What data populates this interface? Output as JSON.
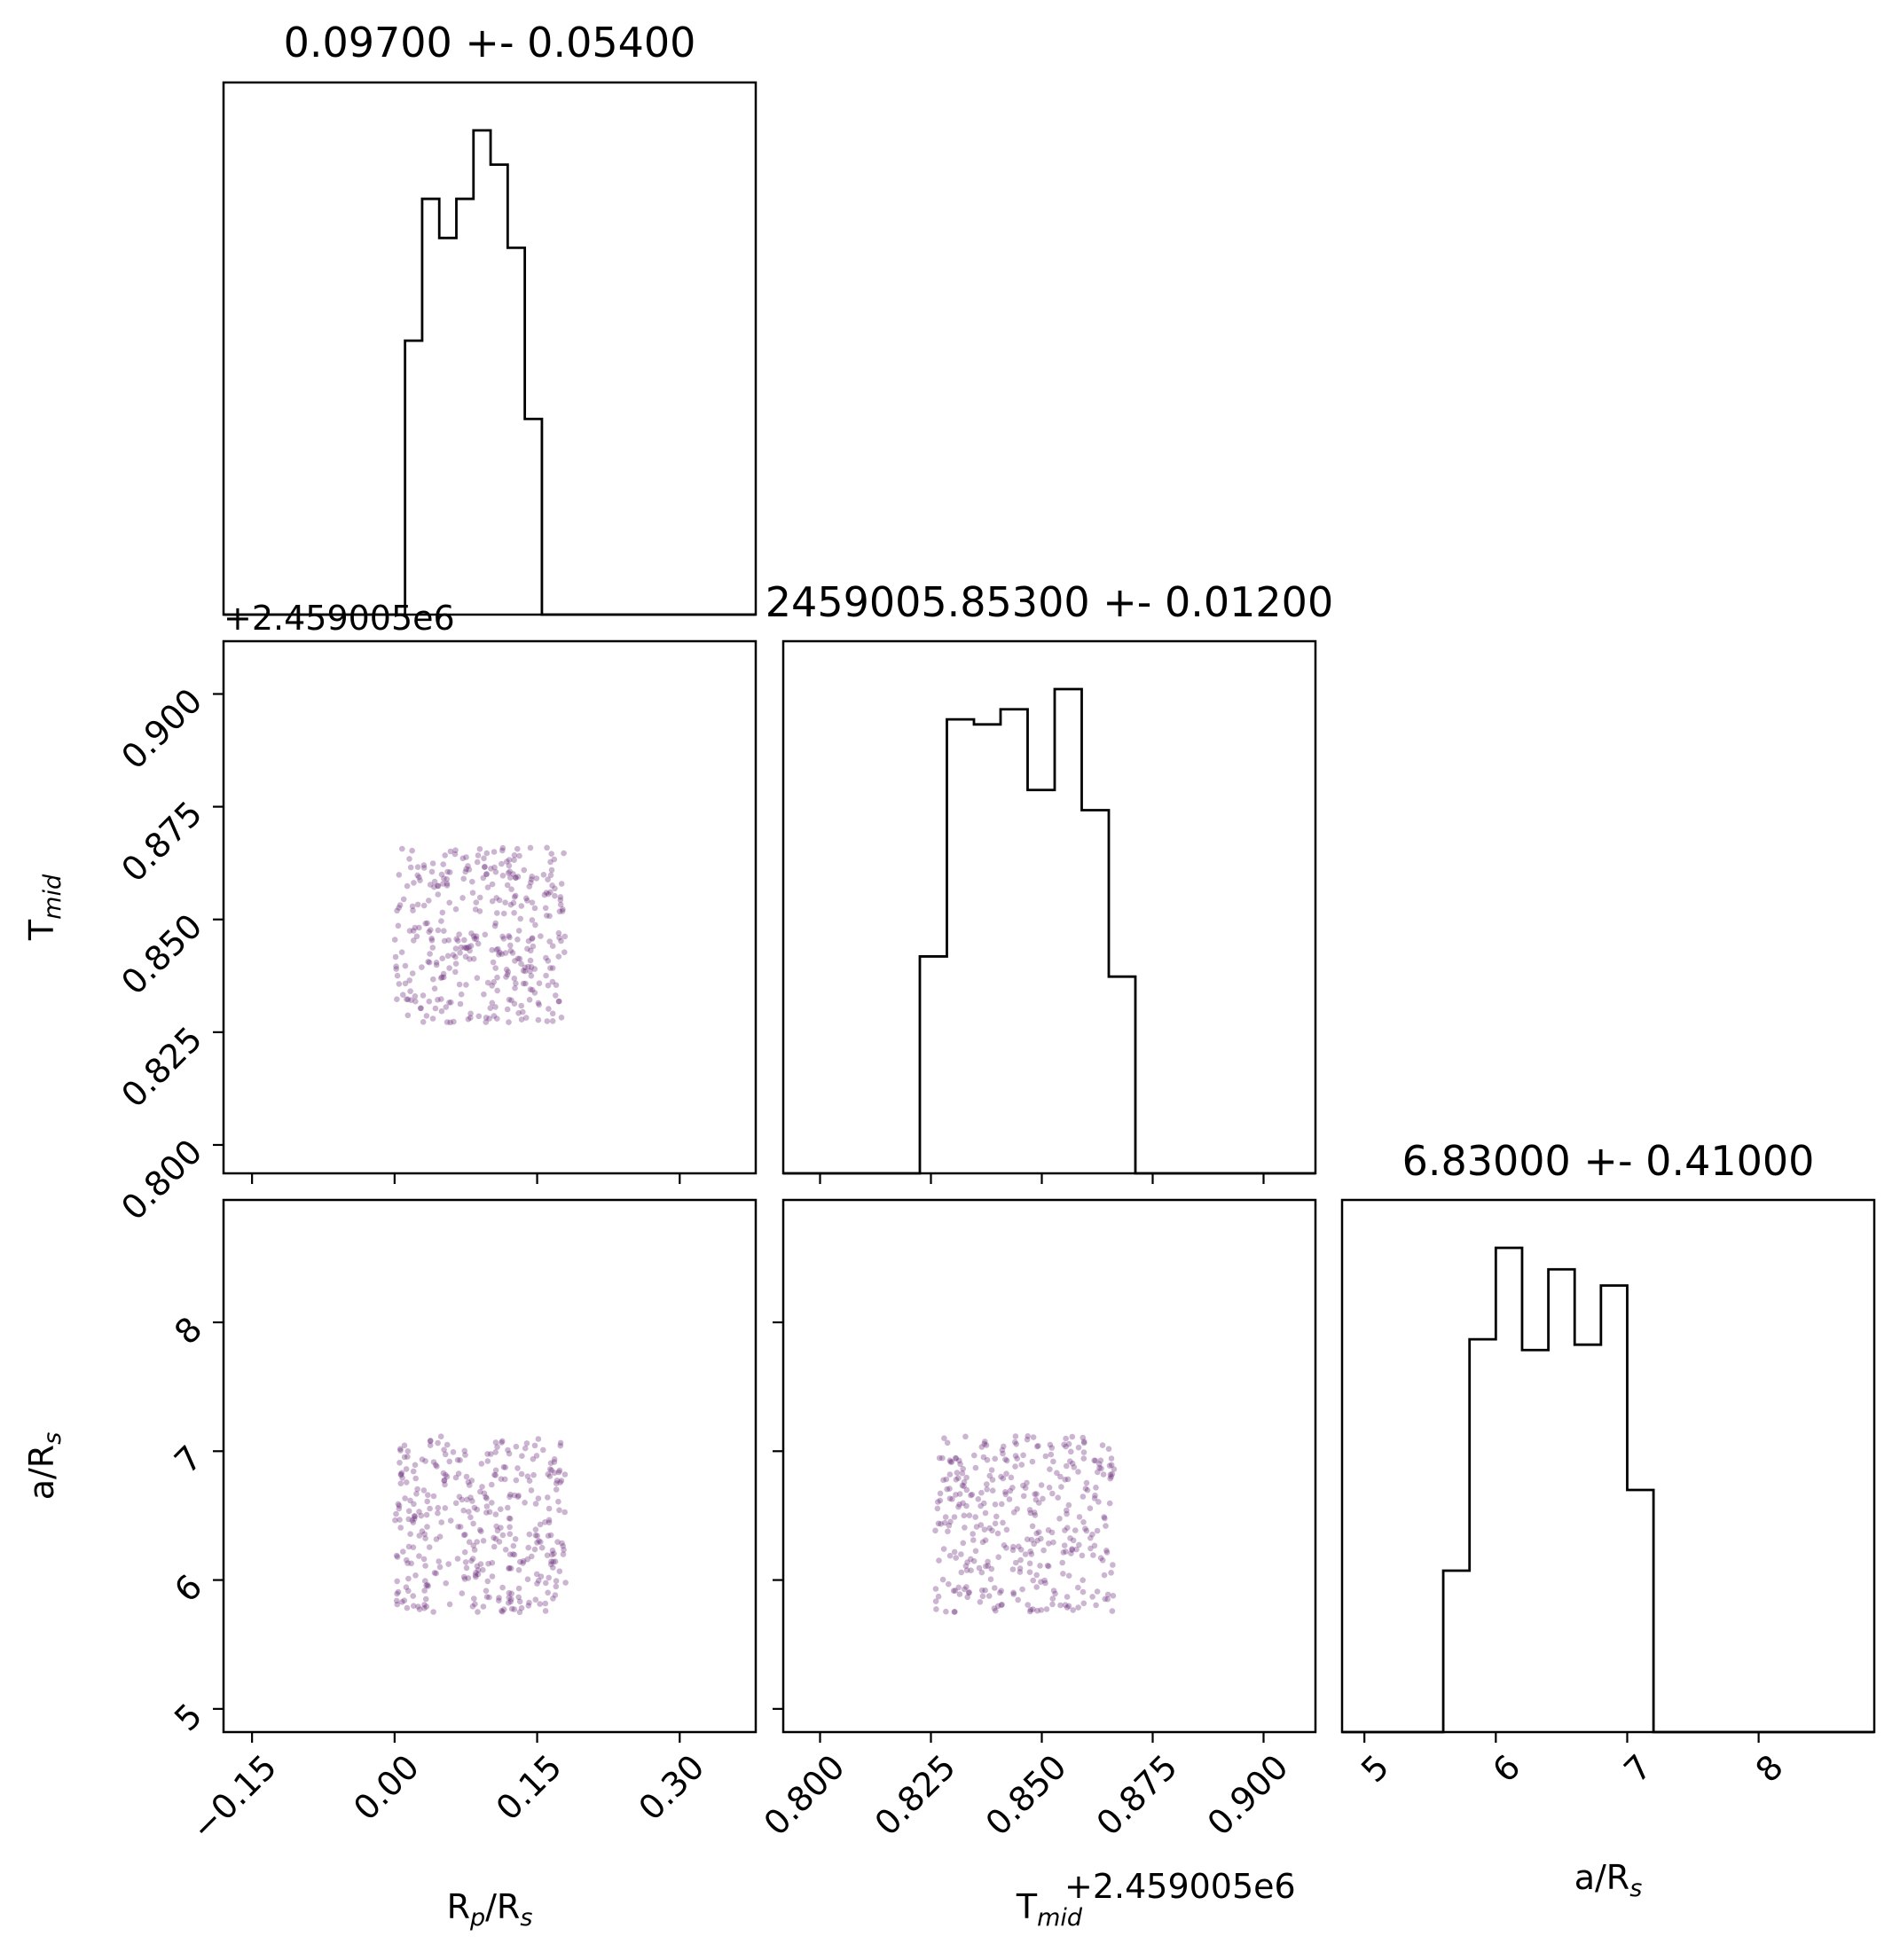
{
  "figure": {
    "type": "corner_plot",
    "scatter_color": "#6a2c7a",
    "line_color": "#000000"
  },
  "chart_data": [
    {
      "type": "histogram",
      "id": "rp",
      "title": "0.09700 +- 0.05400",
      "bin_edges": [
        -0.007,
        0.011,
        0.029,
        0.047,
        0.065,
        0.083,
        0.101,
        0.119,
        0.137,
        0.155,
        0.173,
        0.191,
        0.209
      ],
      "counts": [
        0,
        56,
        85,
        77,
        85,
        99,
        92,
        75,
        40,
        0,
        0,
        0
      ],
      "xlim": [
        -0.18,
        0.38
      ]
    },
    {
      "type": "histogram",
      "id": "tmid",
      "title": "2459005.85300 +- 0.01200",
      "bin_edges": [
        0.8225,
        0.8286,
        0.8347,
        0.8407,
        0.8468,
        0.8529,
        0.859,
        0.8651,
        0.8711
      ],
      "counts": [
        43,
        90,
        89,
        92,
        76,
        96,
        72,
        39
      ],
      "xlim": [
        0.7917,
        0.9117
      ]
    },
    {
      "type": "histogram",
      "id": "ars",
      "title": "6.83000 +- 0.41000",
      "bin_edges": [
        5.6,
        5.8,
        6.0,
        6.2,
        6.4,
        6.6,
        6.8,
        7.0,
        7.2
      ],
      "counts": [
        30,
        73,
        90,
        71,
        86,
        72,
        83,
        45
      ],
      "xlim": [
        4.83,
        8.88
      ]
    },
    {
      "type": "scatter",
      "id": "tmid_vs_rp",
      "x_param": "rp",
      "y_param": "tmid",
      "x_range": [
        0.0,
        0.18
      ],
      "y_range": [
        0.827,
        0.866
      ],
      "n_points": 360,
      "xlim": [
        -0.18,
        0.38
      ],
      "ylim": [
        0.7937,
        0.9117
      ]
    },
    {
      "type": "scatter",
      "id": "ars_vs_rp",
      "x_param": "rp",
      "y_param": "ars",
      "x_range": [
        0.0,
        0.18
      ],
      "y_range": [
        5.75,
        7.12
      ],
      "n_points": 360,
      "xlim": [
        -0.18,
        0.38
      ],
      "ylim": [
        4.82,
        8.95
      ]
    },
    {
      "type": "scatter",
      "id": "ars_vs_tmid",
      "x_param": "tmid",
      "y_param": "ars",
      "x_range": [
        0.826,
        0.8665
      ],
      "y_range": [
        5.75,
        7.12
      ],
      "n_points": 360,
      "xlim": [
        0.7917,
        0.9117
      ],
      "ylim": [
        4.82,
        8.95
      ]
    }
  ],
  "axes": {
    "rp": {
      "label_main": "R",
      "label_sub1": "p",
      "label_mid": "/R",
      "label_sub2": "s",
      "ticks": [
        -0.15,
        0.0,
        0.15,
        0.3
      ],
      "tick_labels": [
        "−0.15",
        "0.00",
        "0.15",
        "0.30"
      ]
    },
    "tmid": {
      "label_main": "T",
      "label_sub": "mid",
      "offset": "+2.459005e6",
      "ticks": [
        0.8,
        0.825,
        0.85,
        0.875,
        0.9
      ],
      "tick_labels": [
        "0.800",
        "0.825",
        "0.850",
        "0.875",
        "0.900"
      ]
    },
    "ars": {
      "label_main": "a/R",
      "label_sub": "s",
      "ticks": [
        5,
        6,
        7,
        8
      ],
      "tick_labels": [
        "5",
        "6",
        "7",
        "8"
      ]
    }
  }
}
